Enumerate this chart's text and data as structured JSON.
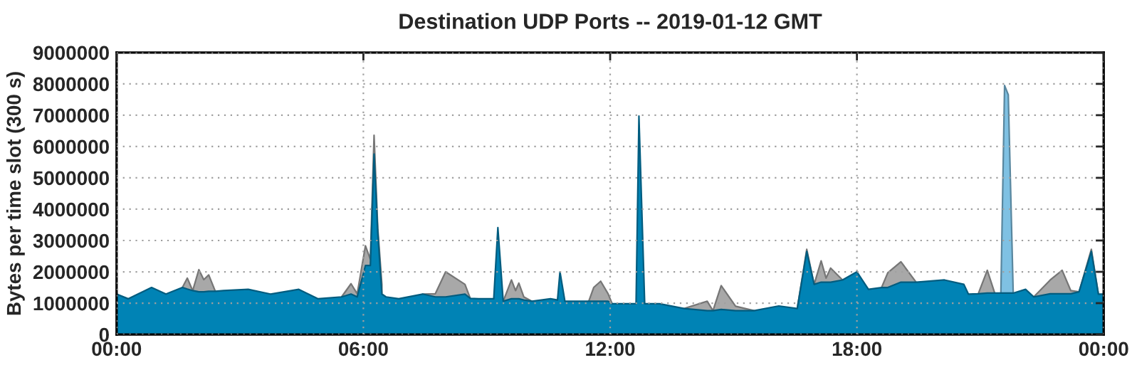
{
  "chart_data": {
    "type": "area",
    "stacked": true,
    "title": "Destination UDP Ports -- 2019-01-12 GMT",
    "ylabel": "Bytes per time slot (300 s)",
    "x": [
      0,
      0.28,
      0.85,
      1.2,
      1.6,
      1.72,
      1.85,
      2.0,
      2.12,
      2.24,
      2.4,
      2.6,
      3.2,
      3.74,
      4.43,
      4.9,
      5.47,
      5.7,
      5.85,
      6.05,
      6.17,
      6.26,
      6.35,
      6.45,
      6.55,
      6.86,
      7.44,
      7.75,
      8.0,
      8.47,
      8.6,
      8.8,
      9.17,
      9.27,
      9.4,
      9.6,
      9.7,
      9.78,
      9.9,
      10.1,
      10.55,
      10.72,
      10.78,
      10.9,
      11.48,
      11.6,
      11.77,
      11.95,
      12.05,
      12.4,
      12.63,
      12.7,
      12.84,
      13.2,
      13.8,
      14.36,
      14.5,
      14.7,
      15.05,
      15.5,
      16.1,
      16.55,
      16.78,
      16.96,
      17.13,
      17.25,
      17.36,
      17.65,
      18.0,
      18.28,
      18.6,
      18.75,
      19.07,
      19.44,
      20.13,
      20.6,
      20.71,
      20.95,
      21.17,
      21.35,
      21.5,
      21.59,
      21.68,
      21.8,
      22.1,
      22.3,
      22.7,
      22.99,
      23.2,
      23.4,
      23.7,
      23.87,
      24.0
    ],
    "series": [
      {
        "color": "#0083b5",
        "values": [
          1290000.0,
          1140000.0,
          1500000.0,
          1290000.0,
          1500000.0,
          1450000.0,
          1400000.0,
          1360000.0,
          1360000.0,
          1380000.0,
          1380000.0,
          1400000.0,
          1440000.0,
          1290000.0,
          1440000.0,
          1140000.0,
          1200000.0,
          1290000.0,
          1200000.0,
          2200000.0,
          2200000.0,
          5760000.0,
          3260000.0,
          1290000.0,
          1200000.0,
          1140000.0,
          1290000.0,
          1200000.0,
          1200000.0,
          1290000.0,
          1150000.0,
          1140000.0,
          1140000.0,
          3410000.0,
          1060000.0,
          1140000.0,
          1140000.0,
          1140000.0,
          1100000.0,
          1060000.0,
          1140000.0,
          1100000.0,
          2000000.0,
          1060000.0,
          1060000.0,
          1060000.0,
          1060000.0,
          1060000.0,
          980000.0,
          980000.0,
          980000.0,
          6970000.0,
          980000.0,
          980000.0,
          830000.0,
          760000.0,
          760000.0,
          800000.0,
          760000.0,
          760000.0,
          910000.0,
          830000.0,
          2650000.0,
          1600000.0,
          1670000.0,
          1670000.0,
          1670000.0,
          1740000.0,
          2000000.0,
          1440000.0,
          1500000.0,
          1500000.0,
          1670000.0,
          1670000.0,
          1740000.0,
          1600000.0,
          1290000.0,
          1300000.0,
          1320000.0,
          1320000.0,
          1320000.0,
          1320000.0,
          1320000.0,
          1320000.0,
          1440000.0,
          1200000.0,
          1300000.0,
          1300000.0,
          1300000.0,
          1360000.0,
          2650000.0,
          1290000.0,
          1290000.0
        ]
      },
      {
        "color": "#7fc1e3",
        "values": [
          null,
          null,
          null,
          null,
          null,
          null,
          null,
          null,
          null,
          null,
          null,
          null,
          null,
          null,
          null,
          null,
          null,
          null,
          null,
          null,
          null,
          null,
          null,
          null,
          null,
          null,
          null,
          null,
          null,
          null,
          null,
          null,
          null,
          null,
          null,
          null,
          null,
          null,
          null,
          null,
          null,
          null,
          null,
          null,
          null,
          null,
          null,
          null,
          null,
          null,
          null,
          null,
          null,
          null,
          null,
          null,
          null,
          null,
          null,
          null,
          null,
          null,
          null,
          null,
          null,
          null,
          null,
          null,
          null,
          null,
          null,
          null,
          null,
          null,
          null,
          null,
          null,
          null,
          null,
          null,
          0,
          6630000.0,
          6330000.0,
          0,
          null,
          null,
          null,
          null,
          null,
          null,
          null,
          null,
          null
        ]
      },
      {
        "color": "#a8a8a8",
        "values": [
          null,
          null,
          null,
          null,
          0,
          350000.0,
          0,
          710000.0,
          390000.0,
          520000.0,
          0,
          null,
          null,
          null,
          null,
          null,
          0,
          330000.0,
          100000.0,
          630000.0,
          200000.0,
          600000.0,
          140000.0,
          310000.0,
          null,
          null,
          0,
          100000.0,
          800000.0,
          310000.0,
          0,
          null,
          null,
          null,
          0,
          600000.0,
          260000.0,
          500000.0,
          100000.0,
          0,
          null,
          null,
          null,
          null,
          0,
          440000.0,
          640000.0,
          240000.0,
          0,
          null,
          null,
          null,
          null,
          null,
          0,
          300000.0,
          0,
          760000.0,
          140000.0,
          0,
          null,
          0,
          70000.0,
          0,
          680000.0,
          130000.0,
          450000.0,
          0,
          null,
          null,
          0,
          470000.0,
          650000.0,
          0,
          null,
          null,
          null,
          0,
          730000.0,
          0,
          null,
          null,
          null,
          null,
          null,
          0,
          440000.0,
          750000.0,
          100000.0,
          0,
          70000.0,
          0,
          null
        ]
      }
    ],
    "xlim": [
      0,
      24
    ],
    "xticks": [
      {
        "value": 0,
        "label": "00:00"
      },
      {
        "value": 6,
        "label": "06:00"
      },
      {
        "value": 12,
        "label": "12:00"
      },
      {
        "value": 18,
        "label": "18:00"
      },
      {
        "value": 24,
        "label": "00:00"
      }
    ],
    "ylim": [
      0,
      9000000
    ],
    "yticks": [
      0,
      1000000,
      2000000,
      3000000,
      4000000,
      5000000,
      6000000,
      7000000,
      8000000,
      9000000
    ],
    "grid": true,
    "legend": false
  }
}
